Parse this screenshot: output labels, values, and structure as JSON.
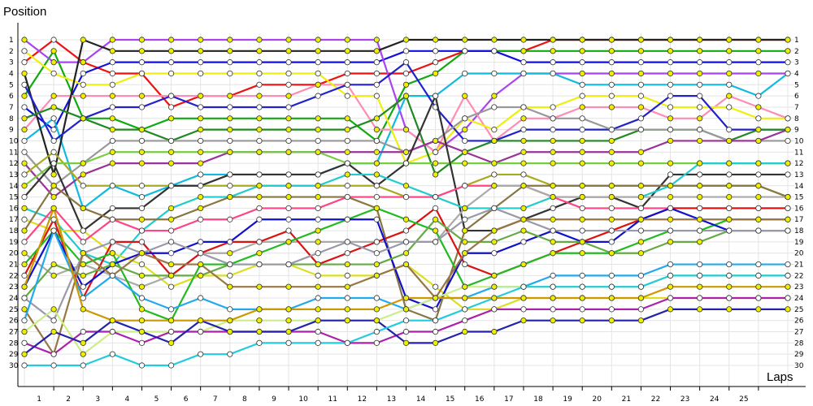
{
  "chart_data": {
    "type": "line",
    "title": "",
    "xlabel": "Laps",
    "ylabel": "Position",
    "x": [
      0,
      1,
      2,
      3,
      4,
      5,
      6,
      7,
      8,
      9,
      10,
      11,
      12,
      13,
      14,
      15,
      16,
      17,
      18,
      19,
      20,
      21,
      22,
      23,
      24,
      25,
      26
    ],
    "x_tick_labels": [
      "1",
      "2",
      "3",
      "4",
      "5",
      "6",
      "7",
      "8",
      "9",
      "10",
      "11",
      "12",
      "13",
      "14",
      "15",
      "16",
      "17",
      "18",
      "19",
      "20",
      "21",
      "22",
      "23",
      "24",
      "25"
    ],
    "y_tick_labels": [
      "1",
      "2",
      "3",
      "4",
      "5",
      "6",
      "7",
      "8",
      "9",
      "10",
      "11",
      "12",
      "13",
      "14",
      "15",
      "16",
      "17",
      "18",
      "19",
      "20",
      "21",
      "22",
      "23",
      "24",
      "25",
      "26",
      "27",
      "28",
      "29",
      "30"
    ],
    "ylim": [
      1,
      30
    ],
    "y_inverted": true,
    "grid": true,
    "legend": "none",
    "series": [
      {
        "color": "#ee1111",
        "values": [
          3,
          1,
          3,
          4,
          4,
          7,
          6,
          6,
          5,
          5,
          5,
          4,
          4,
          4,
          3,
          2,
          2,
          2,
          1,
          1,
          1,
          1,
          1,
          1,
          1,
          1,
          1
        ]
      },
      {
        "color": "#11aa11",
        "values": [
          6,
          2,
          8,
          8,
          9,
          8,
          8,
          8,
          8,
          8,
          8,
          8,
          10,
          5,
          4,
          2,
          2,
          2,
          2,
          2,
          2,
          2,
          2,
          2,
          2,
          2,
          2
        ]
      },
      {
        "color": "#1111dd",
        "values": [
          7,
          9,
          4,
          3,
          3,
          3,
          3,
          3,
          3,
          3,
          3,
          3,
          3,
          2,
          2,
          2,
          2,
          3,
          3,
          3,
          3,
          3,
          3,
          3,
          3,
          3,
          3
        ]
      },
      {
        "color": "#aa44ee",
        "values": [
          1,
          3,
          3,
          1,
          1,
          1,
          1,
          1,
          1,
          1,
          1,
          1,
          1,
          9,
          11,
          9,
          6,
          4,
          4,
          4,
          4,
          4,
          4,
          4,
          4,
          4,
          4
        ]
      },
      {
        "color": "#11bbdd",
        "values": [
          10,
          8,
          16,
          14,
          15,
          14,
          13,
          13,
          13,
          13,
          13,
          12,
          12,
          6,
          6,
          4,
          4,
          4,
          4,
          5,
          5,
          5,
          5,
          5,
          5,
          6,
          4
        ]
      },
      {
        "color": "#ff8cb4",
        "values": [
          9,
          6,
          6,
          6,
          6,
          6,
          6,
          6,
          6,
          6,
          5,
          5,
          9,
          9,
          11,
          6,
          10,
          8,
          8,
          7,
          7,
          7,
          8,
          8,
          6,
          7,
          8
        ]
      },
      {
        "color": "#eeee11",
        "values": [
          2,
          4,
          5,
          5,
          4,
          4,
          4,
          4,
          4,
          4,
          4,
          6,
          6,
          12,
          11,
          8,
          9,
          7,
          7,
          6,
          6,
          6,
          7,
          7,
          7,
          8,
          8
        ]
      },
      {
        "color": "#222222",
        "values": [
          4,
          13,
          1,
          2,
          2,
          2,
          2,
          2,
          2,
          2,
          2,
          2,
          2,
          1,
          1,
          1,
          1,
          1,
          1,
          1,
          1,
          1,
          1,
          1,
          1,
          1,
          1
        ]
      },
      {
        "color": "#2222cc",
        "values": [
          5,
          10,
          8,
          7,
          7,
          6,
          7,
          7,
          7,
          7,
          6,
          5,
          5,
          3,
          7,
          10,
          10,
          9,
          9,
          9,
          9,
          8,
          6,
          6,
          9,
          9,
          9
        ]
      },
      {
        "color": "#228822",
        "values": [
          8,
          7,
          8,
          9,
          9,
          10,
          9,
          9,
          9,
          9,
          9,
          9,
          8,
          6,
          13,
          11,
          10,
          10,
          10,
          10,
          10,
          9,
          9,
          9,
          10,
          9,
          9
        ]
      },
      {
        "color": "#999999",
        "values": [
          11,
          14,
          12,
          10,
          10,
          10,
          10,
          10,
          10,
          10,
          10,
          10,
          10,
          11,
          10,
          8,
          7,
          7,
          8,
          8,
          9,
          9,
          9,
          9,
          10,
          10,
          10
        ]
      },
      {
        "color": "#993399",
        "values": [
          12,
          15,
          13,
          12,
          12,
          12,
          12,
          11,
          11,
          11,
          11,
          11,
          11,
          11,
          10,
          11,
          12,
          11,
          11,
          11,
          11,
          11,
          10,
          10,
          10,
          10,
          9
        ]
      },
      {
        "color": "#aaaa22",
        "values": [
          13,
          11,
          14,
          14,
          14,
          14,
          14,
          14,
          14,
          14,
          14,
          14,
          14,
          15,
          15,
          14,
          13,
          13,
          14,
          14,
          14,
          14,
          14,
          14,
          14,
          14,
          15
        ]
      },
      {
        "color": "#77cc44",
        "values": [
          14,
          12,
          12,
          11,
          11,
          11,
          11,
          11,
          11,
          11,
          11,
          12,
          12,
          12,
          12,
          12,
          12,
          12,
          12,
          12,
          12,
          12,
          12,
          12,
          12,
          12,
          12
        ]
      },
      {
        "color": "#333333",
        "values": [
          15,
          12,
          18,
          16,
          16,
          14,
          14,
          13,
          13,
          13,
          13,
          12,
          14,
          12,
          6,
          18,
          18,
          17,
          16,
          15,
          15,
          16,
          13,
          13,
          13,
          13,
          13
        ]
      },
      {
        "color": "#22cccc",
        "values": [
          16,
          17,
          20,
          21,
          18,
          16,
          15,
          15,
          14,
          14,
          14,
          13,
          13,
          14,
          15,
          16,
          16,
          16,
          15,
          15,
          15,
          15,
          14,
          12,
          12,
          12,
          12
        ]
      },
      {
        "color": "#dddd22",
        "values": [
          17,
          18,
          18,
          20,
          21,
          23,
          22,
          22,
          21,
          21,
          22,
          22,
          22,
          21,
          23,
          25,
          25,
          24,
          24,
          24,
          24,
          24,
          24,
          24,
          24,
          24,
          24
        ]
      },
      {
        "color": "#887744",
        "values": [
          18,
          14,
          16,
          17,
          17,
          17,
          16,
          15,
          15,
          15,
          15,
          15,
          16,
          25,
          26,
          18,
          16,
          14,
          14,
          14,
          14,
          14,
          14,
          14,
          14,
          14,
          15
        ]
      },
      {
        "color": "#ff4488",
        "values": [
          19,
          16,
          19,
          17,
          18,
          18,
          17,
          17,
          16,
          16,
          16,
          15,
          15,
          15,
          15,
          14,
          14,
          14,
          15,
          16,
          16,
          16,
          16,
          16,
          16,
          16,
          16
        ]
      },
      {
        "color": "#aaaaaa",
        "values": [
          20,
          22,
          21,
          22,
          23,
          22,
          20,
          20,
          19,
          19,
          19,
          19,
          19,
          19,
          19,
          16,
          14,
          14,
          15,
          15,
          15,
          15,
          15,
          15,
          15,
          15,
          15
        ]
      },
      {
        "color": "#dd1111",
        "values": [
          22,
          17,
          24,
          19,
          19,
          22,
          20,
          19,
          19,
          18,
          21,
          20,
          19,
          18,
          16,
          21,
          22,
          21,
          20,
          19,
          18,
          17,
          16,
          16,
          16,
          16,
          16
        ]
      },
      {
        "color": "#22bb22",
        "values": [
          21,
          18,
          21,
          20,
          25,
          26,
          21,
          21,
          20,
          19,
          18,
          17,
          16,
          17,
          18,
          23,
          22,
          21,
          20,
          20,
          20,
          19,
          18,
          18,
          17,
          17,
          17
        ]
      },
      {
        "color": "#1111cc",
        "values": [
          23,
          18,
          23,
          21,
          20,
          20,
          19,
          19,
          17,
          17,
          17,
          17,
          17,
          24,
          25,
          20,
          20,
          19,
          18,
          19,
          19,
          17,
          16,
          17,
          18,
          18,
          18
        ]
      },
      {
        "color": "#66aa44",
        "values": [
          24,
          21,
          22,
          21,
          22,
          22,
          22,
          21,
          21,
          21,
          21,
          21,
          21,
          20,
          17,
          19,
          19,
          18,
          19,
          19,
          20,
          20,
          19,
          19,
          18,
          18,
          18
        ]
      },
      {
        "color": "#9999aa",
        "values": [
          24,
          26,
          20,
          19,
          20,
          19,
          20,
          21,
          21,
          21,
          20,
          19,
          20,
          19,
          19,
          17,
          16,
          17,
          18,
          18,
          18,
          18,
          18,
          18,
          18,
          18,
          18
        ]
      },
      {
        "color": "#997744",
        "values": [
          25,
          29,
          20,
          22,
          20,
          21,
          21,
          23,
          23,
          23,
          23,
          23,
          22,
          21,
          24,
          20,
          18,
          17,
          17,
          17,
          17,
          17,
          17,
          17,
          17,
          17,
          17
        ]
      },
      {
        "color": "#22aaee",
        "values": [
          26,
          18,
          24,
          22,
          24,
          25,
          24,
          25,
          25,
          25,
          24,
          24,
          24,
          25,
          24,
          24,
          23,
          23,
          22,
          22,
          22,
          22,
          21,
          21,
          21,
          21,
          21
        ]
      },
      {
        "color": "#ccee88",
        "values": [
          27,
          25,
          29,
          27,
          27,
          27,
          27,
          26,
          26,
          26,
          26,
          26,
          26,
          25,
          24,
          23,
          23,
          23,
          23,
          23,
          23,
          23,
          22,
          22,
          22,
          22,
          22
        ]
      },
      {
        "color": "#aa22aa",
        "values": [
          28,
          29,
          27,
          27,
          28,
          27,
          27,
          27,
          27,
          27,
          27,
          28,
          28,
          27,
          27,
          26,
          25,
          25,
          25,
          25,
          25,
          25,
          24,
          24,
          24,
          24,
          24
        ]
      },
      {
        "color": "#2222aa",
        "values": [
          29,
          27,
          28,
          26,
          27,
          28,
          26,
          27,
          27,
          27,
          26,
          26,
          26,
          28,
          28,
          27,
          27,
          26,
          26,
          26,
          26,
          26,
          25,
          25,
          25,
          25,
          25
        ]
      },
      {
        "color": "#22ccdd",
        "values": [
          30,
          30,
          30,
          29,
          30,
          30,
          29,
          29,
          28,
          28,
          28,
          28,
          27,
          26,
          26,
          25,
          24,
          23,
          23,
          23,
          23,
          23,
          22,
          22,
          22,
          22,
          22
        ]
      },
      {
        "color": "#cc9900",
        "values": [
          23,
          16,
          25,
          26,
          26,
          26,
          26,
          26,
          25,
          25,
          25,
          25,
          25,
          24,
          24,
          24,
          24,
          24,
          24,
          24,
          24,
          24,
          23,
          23,
          23,
          23,
          23
        ]
      }
    ]
  }
}
